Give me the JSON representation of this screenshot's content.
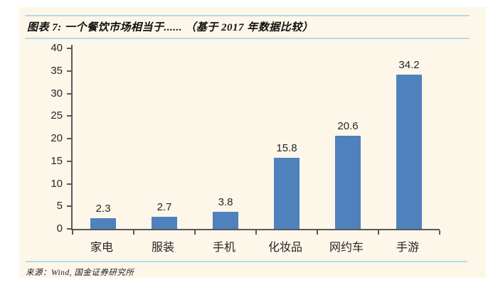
{
  "figure": {
    "label": "图表 7:",
    "title": "图表 7: 一个餐饮市场相当于...... （基于 2017 年数据比较）",
    "source": "来源：Wind, 国金证券研究所"
  },
  "colors": {
    "panel_background": "#fdf7ea",
    "bar": "#4f81bd",
    "rule_line": "#b5dbe6",
    "axis": "#595959",
    "text": "#262626"
  },
  "chart_data": {
    "type": "bar",
    "categories": [
      "家电",
      "服装",
      "手机",
      "化妆品",
      "网约车",
      "手游"
    ],
    "values": [
      2.3,
      2.7,
      3.8,
      15.8,
      20.6,
      34.2
    ],
    "value_labels": [
      "2.3",
      "2.7",
      "3.8",
      "15.8",
      "20.6",
      "34.2"
    ],
    "title": "一个餐饮市场相当于……（基于2017年数据比较）",
    "xlabel": "",
    "ylabel": "",
    "ylim": [
      0,
      40
    ],
    "yticks": [
      0,
      5,
      10,
      15,
      20,
      25,
      30,
      35,
      40
    ],
    "grid": false,
    "legend": false,
    "bar_color": "#4f81bd"
  }
}
